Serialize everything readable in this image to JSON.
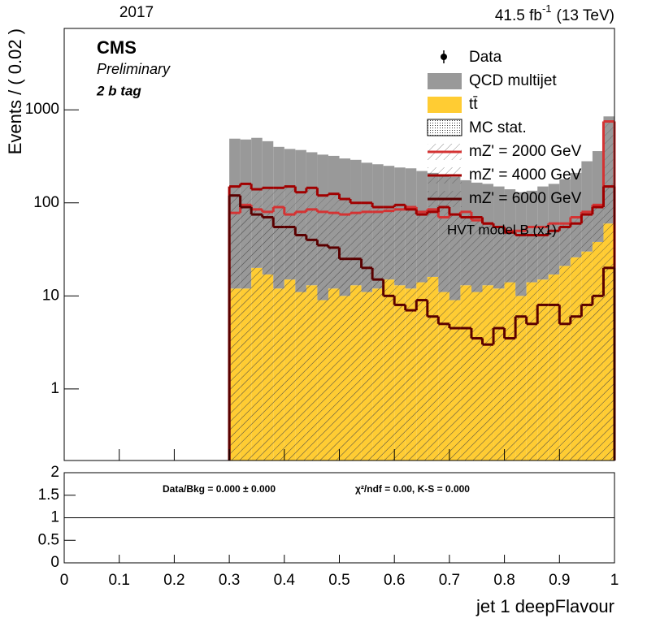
{
  "chart_data": {
    "type": "stacked-histogram",
    "year": "2017",
    "lumi_value": "41.5 fb",
    "lumi_exponent": "-1",
    "energy": "(13 TeV)",
    "experiment": "CMS",
    "status": "Preliminary",
    "selection": "2 b tag",
    "model_label": "HVT model B (x1)",
    "x_label": "jet 1 deepFlavour",
    "y_label": "Events / ( 0.02 )",
    "data_label": "Data",
    "mc_stat_label": "MC stat.",
    "log_y": true,
    "xlim": [
      0,
      1
    ],
    "xticks": [
      0,
      0.1,
      0.2,
      0.3,
      0.4,
      0.5,
      0.6,
      0.7,
      0.8,
      0.9,
      1
    ],
    "ylim": [
      0.17,
      7500
    ],
    "yticks": [
      1,
      10,
      100,
      1000
    ],
    "bins": [
      0,
      0.02,
      0.04,
      0.06,
      0.08,
      0.1,
      0.12,
      0.14,
      0.16,
      0.18,
      0.2,
      0.22,
      0.24,
      0.26,
      0.28,
      0.3,
      0.32,
      0.34,
      0.36,
      0.38,
      0.4,
      0.42,
      0.44,
      0.46,
      0.48,
      0.5,
      0.52,
      0.54,
      0.56,
      0.58,
      0.6,
      0.62,
      0.64,
      0.66,
      0.68,
      0.7,
      0.72,
      0.74,
      0.76,
      0.78,
      0.8,
      0.82,
      0.84,
      0.86,
      0.88,
      0.9,
      0.92,
      0.94,
      0.96,
      0.98,
      1
    ],
    "stack": [
      {
        "name": "tt̄",
        "color": "#ffcc33",
        "values": [
          null,
          null,
          null,
          null,
          null,
          null,
          null,
          null,
          null,
          null,
          null,
          null,
          null,
          null,
          null,
          12,
          12,
          20,
          17,
          12,
          15,
          11,
          13,
          9,
          12,
          10,
          13,
          11,
          12,
          15,
          13,
          12,
          14,
          16,
          11,
          9,
          13,
          11,
          13,
          12,
          14,
          10,
          14,
          15,
          17,
          21,
          26,
          30,
          38,
          60
        ]
      },
      {
        "name": "QCD multijet",
        "color": "#999999",
        "values": [
          null,
          null,
          null,
          null,
          null,
          null,
          null,
          null,
          null,
          null,
          null,
          null,
          null,
          null,
          null,
          478,
          468,
          480,
          443,
          388,
          365,
          359,
          337,
          321,
          308,
          290,
          277,
          259,
          248,
          235,
          227,
          223,
          206,
          194,
          189,
          181,
          162,
          154,
          147,
          138,
          126,
          120,
          121,
          135,
          143,
          159,
          184,
          250,
          322,
          790
        ]
      }
    ],
    "signals": [
      {
        "name": "mZ' = 2000 GeV",
        "color": "#d43333",
        "values": [
          null,
          null,
          null,
          null,
          null,
          null,
          null,
          null,
          null,
          null,
          null,
          null,
          null,
          null,
          null,
          78,
          95,
          85,
          80,
          90,
          75,
          80,
          85,
          80,
          78,
          75,
          78,
          80,
          80,
          82,
          85,
          90,
          80,
          85,
          70,
          75,
          80,
          65,
          60,
          55,
          50,
          50,
          55,
          55,
          60,
          60,
          70,
          80,
          95,
          750
        ]
      },
      {
        "name": "mZ' = 4000 GeV",
        "color": "#a00000",
        "values": [
          null,
          null,
          null,
          null,
          null,
          null,
          null,
          null,
          null,
          null,
          null,
          null,
          null,
          null,
          null,
          150,
          160,
          140,
          145,
          145,
          150,
          130,
          145,
          120,
          125,
          110,
          100,
          100,
          90,
          90,
          95,
          85,
          75,
          80,
          90,
          75,
          70,
          70,
          60,
          55,
          48,
          45,
          45,
          45,
          50,
          55,
          60,
          75,
          90,
          150
        ]
      },
      {
        "name": "mZ' = 6000 GeV",
        "color": "#5a0000",
        "values": [
          null,
          null,
          null,
          null,
          null,
          null,
          null,
          null,
          null,
          null,
          null,
          null,
          null,
          null,
          null,
          120,
          90,
          75,
          70,
          55,
          55,
          45,
          40,
          35,
          33,
          25,
          25,
          20,
          15,
          10,
          8,
          7,
          9,
          6,
          5,
          4.5,
          4.5,
          3.5,
          3,
          4.5,
          3.5,
          6,
          5,
          8,
          8,
          5,
          6,
          8,
          10,
          20
        ]
      }
    ],
    "ratio": {
      "ylim": [
        0,
        2
      ],
      "yticks": [
        0,
        0.5,
        1,
        1.5,
        2
      ],
      "reference": 1,
      "summary": "Data/Bkg = 0.000 ± 0.000",
      "fit": "χ²/ndf = 0.00,   K-S = 0.000"
    }
  }
}
